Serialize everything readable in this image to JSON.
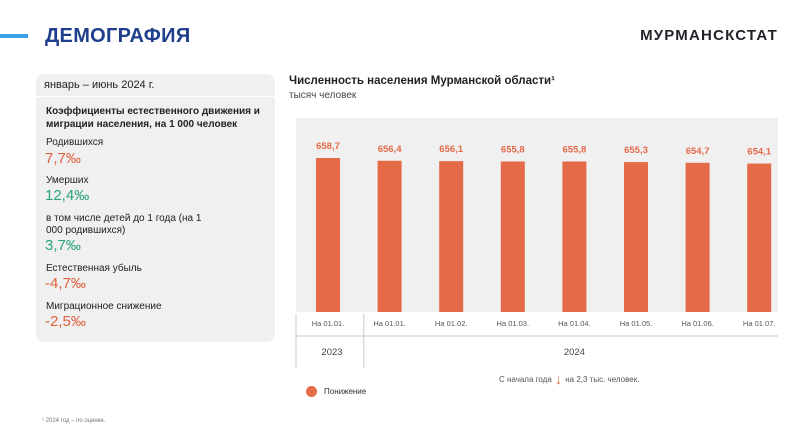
{
  "header": {
    "title": "ДЕМОГРАФИЯ",
    "brand": "МУРМАНСКСТАТ"
  },
  "panel": {
    "period": "январь – июнь 2024 г.",
    "heading": "Коэффициенты естественного движения и миграции населения, на 1 000 человек",
    "stats": [
      {
        "label": "Родившихся",
        "value": "7,7‰",
        "color": "#e0613f"
      },
      {
        "label": "Умерших",
        "value": "12,4‰",
        "color": "#2aa27a"
      },
      {
        "label": "в том числе детей до 1 года (на 1 000 родившихся)",
        "value": "3,7‰",
        "color": "#2aa27a"
      },
      {
        "label": "Естественная убыль",
        "value": "-4,7‰",
        "color": "#e0613f"
      },
      {
        "label": "Миграционное снижение",
        "value": "-2,5‰",
        "color": "#e0613f"
      }
    ]
  },
  "chart_data": {
    "type": "bar",
    "title": "Численность населения Мурманской области¹",
    "subtitle": "тысяч человек",
    "categories": [
      "На 01.01.",
      "На 01.01.",
      "На 01.02.",
      "На 01.03.",
      "На 01.04.",
      "На 01.05.",
      "На 01.06.",
      "На 01.07."
    ],
    "values": [
      658.7,
      656.4,
      656.1,
      655.8,
      655.8,
      655.3,
      654.7,
      654.1
    ],
    "value_labels": [
      "658,7",
      "656,4",
      "656,1",
      "655,8",
      "655,8",
      "655,3",
      "654,7",
      "654,1"
    ],
    "years": [
      {
        "label": "2023",
        "categories": 1
      },
      {
        "label": "2024",
        "categories": 7
      }
    ],
    "bar_color": "#e56a48",
    "ylim": [
      0,
      700
    ],
    "grid": false,
    "legend": {
      "placement": "bottom-left",
      "entries": [
        {
          "name": "Понижение",
          "color": "#e56a48"
        }
      ]
    }
  },
  "trend_note": {
    "prefix": "С начала года",
    "arrow": "down-arrow",
    "suffix": "на 2,3 тыс. человек."
  },
  "footnote": "¹ 2024 год – по оценке."
}
